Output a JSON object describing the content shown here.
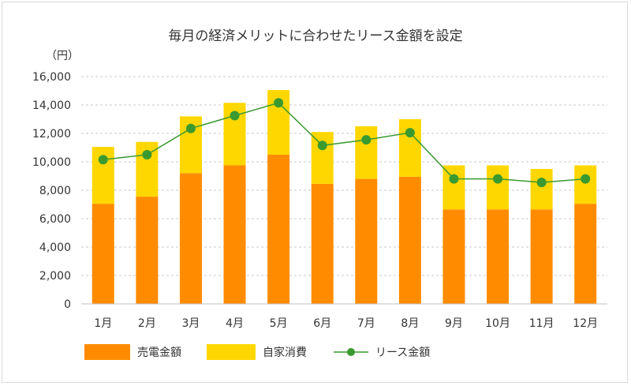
{
  "chart_data": {
    "type": "bar",
    "stacked": true,
    "title": "毎月の経済メリットに合わせたリース金額を設定",
    "unit_label": "（円）",
    "categories": [
      "1月",
      "2月",
      "3月",
      "4月",
      "5月",
      "6月",
      "7月",
      "8月",
      "9月",
      "10月",
      "11月",
      "12月"
    ],
    "series": [
      {
        "name": "売電金額",
        "type": "bar",
        "color": "#ff8c00",
        "values": [
          7050,
          7550,
          9200,
          9750,
          10500,
          8450,
          8800,
          8950,
          6650,
          6650,
          6650,
          7050
        ]
      },
      {
        "name": "自家消費",
        "type": "bar",
        "color": "#ffd700",
        "values": [
          4000,
          3850,
          4000,
          4400,
          4550,
          3650,
          3700,
          4050,
          3100,
          3100,
          2850,
          2700
        ]
      },
      {
        "name": "リース金額",
        "type": "line",
        "color": "#3a9a2f",
        "values": [
          10150,
          10500,
          12350,
          13250,
          14150,
          11150,
          11550,
          12050,
          8800,
          8800,
          8550,
          8800
        ]
      }
    ],
    "ylim": [
      0,
      16000
    ],
    "yticks": [
      "0",
      "2,000",
      "4,000",
      "6,000",
      "8,000",
      "10,000",
      "12,000",
      "14,000",
      "16,000"
    ],
    "grid": "horizontal-dashed",
    "legend_position": "bottom"
  }
}
